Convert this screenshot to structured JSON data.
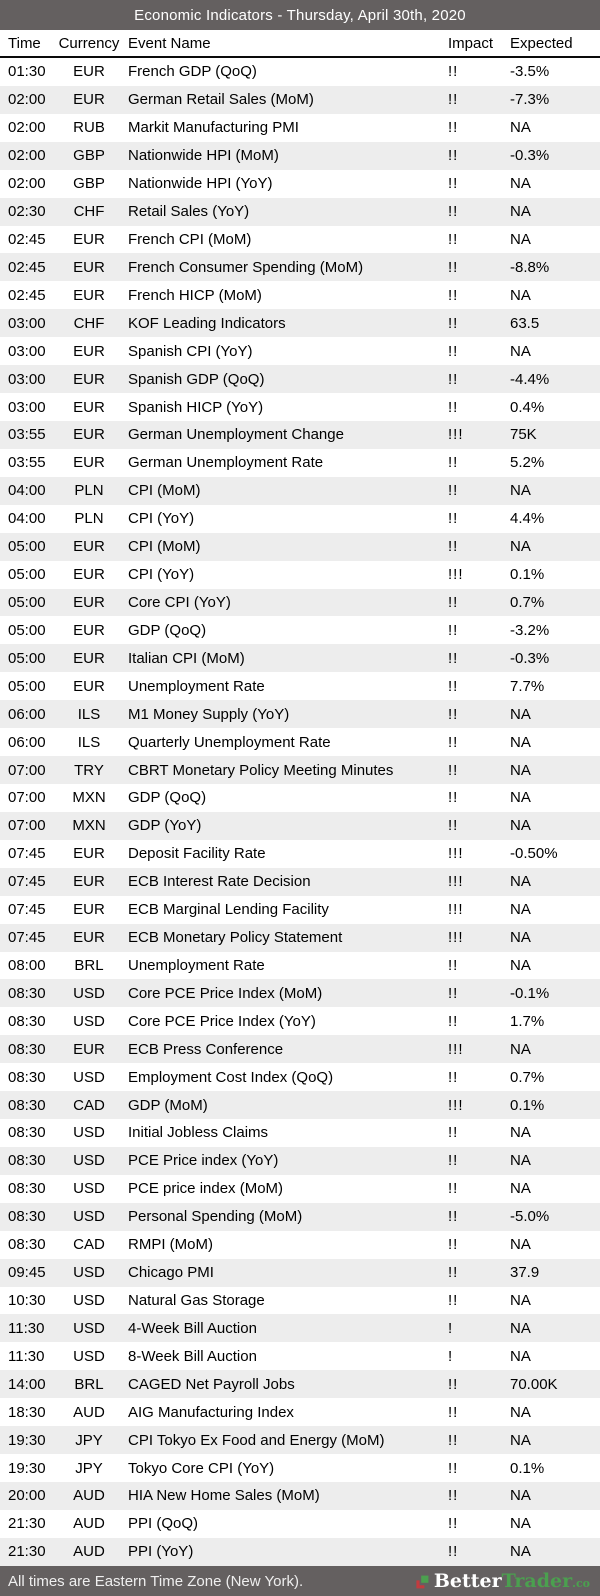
{
  "header": {
    "title": "Economic Indicators - Thursday, April 30th, 2020"
  },
  "table": {
    "columns": {
      "time": "Time",
      "currency": "Currency",
      "event": "Event Name",
      "impact": "Impact",
      "expected": "Expected"
    },
    "rows": [
      {
        "time": "01:30",
        "currency": "EUR",
        "event": "French GDP (QoQ)",
        "impact": "!!",
        "expected": "-3.5%"
      },
      {
        "time": "02:00",
        "currency": "EUR",
        "event": "German Retail Sales (MoM)",
        "impact": "!!",
        "expected": "-7.3%"
      },
      {
        "time": "02:00",
        "currency": "RUB",
        "event": "Markit Manufacturing PMI",
        "impact": "!!",
        "expected": "NA"
      },
      {
        "time": "02:00",
        "currency": "GBP",
        "event": "Nationwide HPI (MoM)",
        "impact": "!!",
        "expected": "-0.3%"
      },
      {
        "time": "02:00",
        "currency": "GBP",
        "event": "Nationwide HPI (YoY)",
        "impact": "!!",
        "expected": "NA"
      },
      {
        "time": "02:30",
        "currency": "CHF",
        "event": "Retail Sales (YoY)",
        "impact": "!!",
        "expected": "NA"
      },
      {
        "time": "02:45",
        "currency": "EUR",
        "event": "French CPI (MoM)",
        "impact": "!!",
        "expected": "NA"
      },
      {
        "time": "02:45",
        "currency": "EUR",
        "event": "French Consumer Spending (MoM)",
        "impact": "!!",
        "expected": "-8.8%"
      },
      {
        "time": "02:45",
        "currency": "EUR",
        "event": "French HICP (MoM)",
        "impact": "!!",
        "expected": "NA"
      },
      {
        "time": "03:00",
        "currency": "CHF",
        "event": "KOF Leading Indicators",
        "impact": "!!",
        "expected": "63.5"
      },
      {
        "time": "03:00",
        "currency": "EUR",
        "event": "Spanish CPI (YoY)",
        "impact": "!!",
        "expected": "NA"
      },
      {
        "time": "03:00",
        "currency": "EUR",
        "event": "Spanish GDP (QoQ)",
        "impact": "!!",
        "expected": "-4.4%"
      },
      {
        "time": "03:00",
        "currency": "EUR",
        "event": "Spanish HICP (YoY)",
        "impact": "!!",
        "expected": "0.4%"
      },
      {
        "time": "03:55",
        "currency": "EUR",
        "event": "German Unemployment Change",
        "impact": "!!!",
        "expected": "75K"
      },
      {
        "time": "03:55",
        "currency": "EUR",
        "event": "German Unemployment Rate",
        "impact": "!!",
        "expected": "5.2%"
      },
      {
        "time": "04:00",
        "currency": "PLN",
        "event": "CPI (MoM)",
        "impact": "!!",
        "expected": "NA"
      },
      {
        "time": "04:00",
        "currency": "PLN",
        "event": "CPI (YoY)",
        "impact": "!!",
        "expected": "4.4%"
      },
      {
        "time": "05:00",
        "currency": "EUR",
        "event": "CPI (MoM)",
        "impact": "!!",
        "expected": "NA"
      },
      {
        "time": "05:00",
        "currency": "EUR",
        "event": "CPI (YoY)",
        "impact": "!!!",
        "expected": "0.1%"
      },
      {
        "time": "05:00",
        "currency": "EUR",
        "event": "Core CPI (YoY)",
        "impact": "!!",
        "expected": "0.7%"
      },
      {
        "time": "05:00",
        "currency": "EUR",
        "event": "GDP (QoQ)",
        "impact": "!!",
        "expected": "-3.2%"
      },
      {
        "time": "05:00",
        "currency": "EUR",
        "event": "Italian CPI (MoM)",
        "impact": "!!",
        "expected": "-0.3%"
      },
      {
        "time": "05:00",
        "currency": "EUR",
        "event": "Unemployment Rate",
        "impact": "!!",
        "expected": "7.7%"
      },
      {
        "time": "06:00",
        "currency": "ILS",
        "event": "M1 Money Supply (YoY)",
        "impact": "!!",
        "expected": "NA"
      },
      {
        "time": "06:00",
        "currency": "ILS",
        "event": "Quarterly Unemployment Rate",
        "impact": "!!",
        "expected": "NA"
      },
      {
        "time": "07:00",
        "currency": "TRY",
        "event": "CBRT Monetary Policy Meeting Minutes",
        "impact": "!!",
        "expected": "NA"
      },
      {
        "time": "07:00",
        "currency": "MXN",
        "event": "GDP (QoQ)",
        "impact": "!!",
        "expected": "NA"
      },
      {
        "time": "07:00",
        "currency": "MXN",
        "event": "GDP (YoY)",
        "impact": "!!",
        "expected": "NA"
      },
      {
        "time": "07:45",
        "currency": "EUR",
        "event": "Deposit Facility Rate",
        "impact": "!!!",
        "expected": "-0.50%"
      },
      {
        "time": "07:45",
        "currency": "EUR",
        "event": "ECB Interest Rate Decision",
        "impact": "!!!",
        "expected": "NA"
      },
      {
        "time": "07:45",
        "currency": "EUR",
        "event": "ECB Marginal Lending Facility",
        "impact": "!!!",
        "expected": "NA"
      },
      {
        "time": "07:45",
        "currency": "EUR",
        "event": "ECB Monetary Policy Statement",
        "impact": "!!!",
        "expected": "NA"
      },
      {
        "time": "08:00",
        "currency": "BRL",
        "event": "Unemployment Rate",
        "impact": "!!",
        "expected": "NA"
      },
      {
        "time": "08:30",
        "currency": "USD",
        "event": "Core PCE Price Index (MoM)",
        "impact": "!!",
        "expected": "-0.1%"
      },
      {
        "time": "08:30",
        "currency": "USD",
        "event": "Core PCE Price Index (YoY)",
        "impact": "!!",
        "expected": "1.7%"
      },
      {
        "time": "08:30",
        "currency": "EUR",
        "event": "ECB Press Conference",
        "impact": "!!!",
        "expected": "NA"
      },
      {
        "time": "08:30",
        "currency": "USD",
        "event": "Employment Cost Index (QoQ)",
        "impact": "!!",
        "expected": "0.7%"
      },
      {
        "time": "08:30",
        "currency": "CAD",
        "event": "GDP (MoM)",
        "impact": "!!!",
        "expected": "0.1%"
      },
      {
        "time": "08:30",
        "currency": "USD",
        "event": "Initial Jobless Claims",
        "impact": "!!",
        "expected": "NA"
      },
      {
        "time": "08:30",
        "currency": "USD",
        "event": "PCE Price index (YoY)",
        "impact": "!!",
        "expected": "NA"
      },
      {
        "time": "08:30",
        "currency": "USD",
        "event": "PCE price index (MoM)",
        "impact": "!!",
        "expected": "NA"
      },
      {
        "time": "08:30",
        "currency": "USD",
        "event": "Personal Spending (MoM)",
        "impact": "!!",
        "expected": "-5.0%"
      },
      {
        "time": "08:30",
        "currency": "CAD",
        "event": "RMPI (MoM)",
        "impact": "!!",
        "expected": "NA"
      },
      {
        "time": "09:45",
        "currency": "USD",
        "event": "Chicago PMI",
        "impact": "!!",
        "expected": "37.9"
      },
      {
        "time": "10:30",
        "currency": "USD",
        "event": "Natural Gas Storage",
        "impact": "!!",
        "expected": "NA"
      },
      {
        "time": "11:30",
        "currency": "USD",
        "event": "4-Week Bill Auction",
        "impact": "!",
        "expected": "NA"
      },
      {
        "time": "11:30",
        "currency": "USD",
        "event": "8-Week Bill Auction",
        "impact": "!",
        "expected": "NA"
      },
      {
        "time": "14:00",
        "currency": "BRL",
        "event": "CAGED Net Payroll Jobs",
        "impact": "!!",
        "expected": "70.00K"
      },
      {
        "time": "18:30",
        "currency": "AUD",
        "event": "AIG Manufacturing Index",
        "impact": "!!",
        "expected": "NA"
      },
      {
        "time": "19:30",
        "currency": "JPY",
        "event": "CPI Tokyo Ex Food and Energy (MoM)",
        "impact": "!!",
        "expected": "NA"
      },
      {
        "time": "19:30",
        "currency": "JPY",
        "event": "Tokyo Core CPI (YoY)",
        "impact": "!!",
        "expected": "0.1%"
      },
      {
        "time": "20:00",
        "currency": "AUD",
        "event": "HIA New Home Sales (MoM)",
        "impact": "!!",
        "expected": "NA"
      },
      {
        "time": "21:30",
        "currency": "AUD",
        "event": "PPI (QoQ)",
        "impact": "!!",
        "expected": "NA"
      },
      {
        "time": "21:30",
        "currency": "AUD",
        "event": "PPI (YoY)",
        "impact": "!!",
        "expected": "NA"
      }
    ]
  },
  "footer": {
    "note": "All times are Eastern Time Zone (New York).",
    "brand": {
      "part1": "Better",
      "part2": "Trader",
      "suffix": ".co"
    }
  },
  "colors": {
    "bar_background": "#646060",
    "stripe": "#ededed",
    "brand_green": "#4ba04f",
    "brand_red": "#c23b3f",
    "header_border": "#0a0a0a"
  }
}
